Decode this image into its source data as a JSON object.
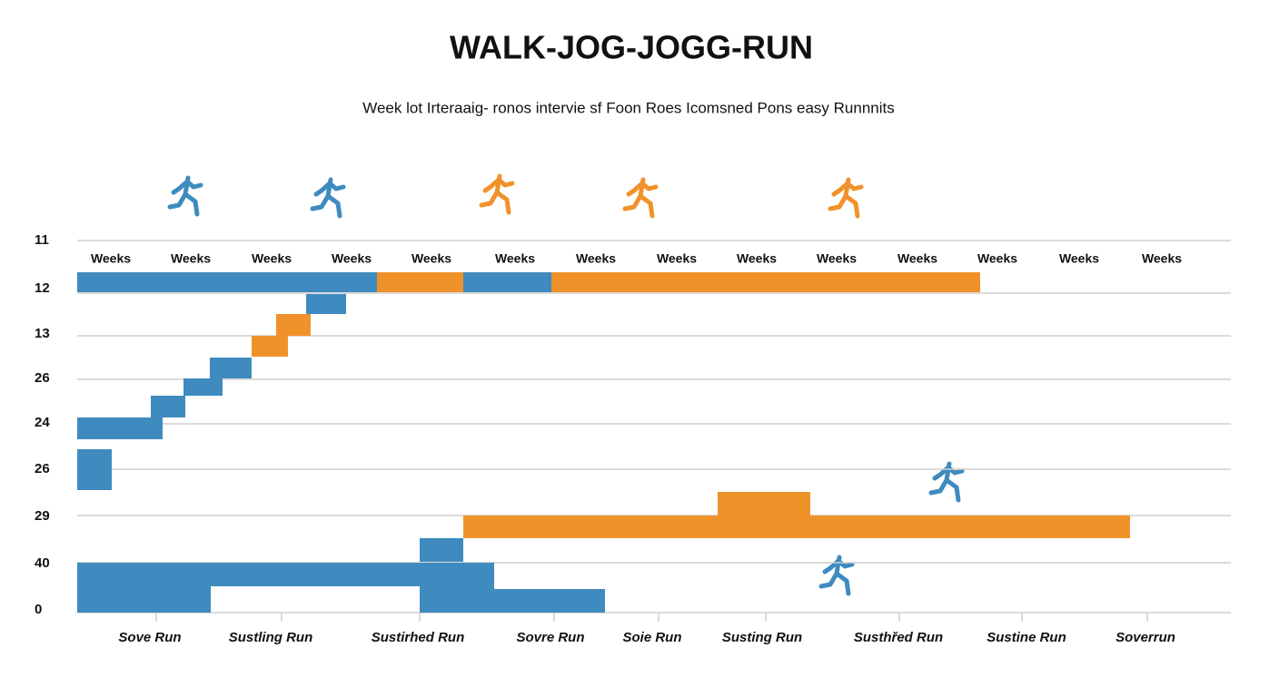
{
  "header": {
    "title": "WALK-JOG-JOGG-RUN",
    "subtitle": "Week lot  Irteraaig- ronos  intervie sf Foon   Roes  Icomsned Pons easy Runnnits"
  },
  "rows": [
    "11",
    "12",
    "13",
    "26",
    "24",
    "26",
    "29",
    "40",
    "0"
  ],
  "week_labels": [
    "Weeks",
    "Weeks",
    "Weeks",
    "Weeks",
    "Weeks",
    "Weeks",
    "Weeks",
    "Weeks",
    "Weeks",
    "Weeks",
    "Weeks",
    "Weeks",
    "Weeks",
    "Weeks"
  ],
  "x_labels": [
    "Sove Run",
    "Sustling Run",
    "Sustirhed Run",
    "Sovre Run",
    "Soie Run",
    "Susting Run",
    "Susthřed Run",
    "Sustine Run",
    "Soverrun"
  ]
}
